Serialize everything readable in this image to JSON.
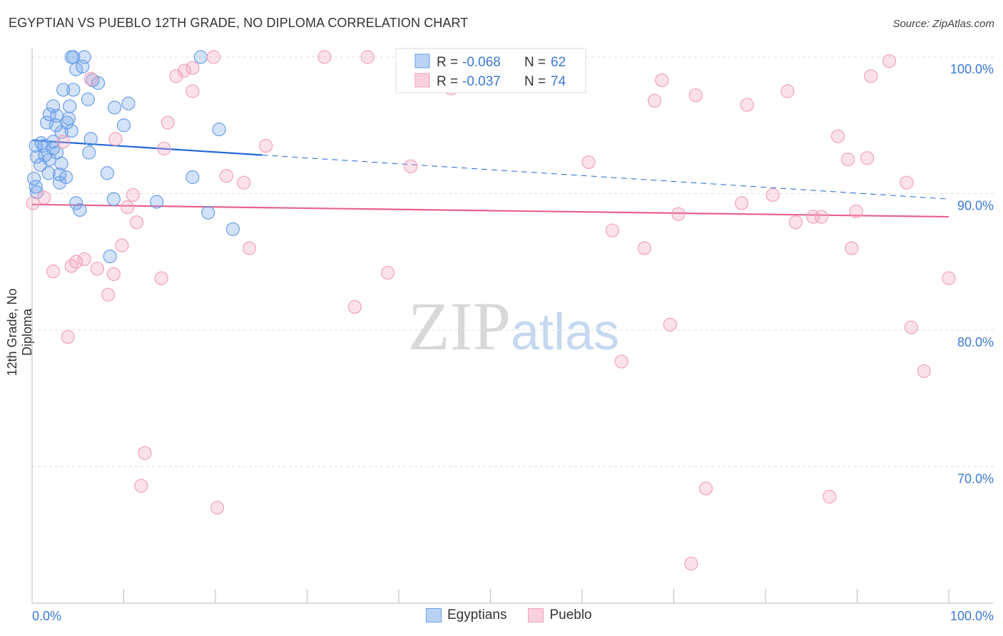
{
  "header": {
    "title": "EGYPTIAN VS PUEBLO 12TH GRADE, NO DIPLOMA CORRELATION CHART",
    "source": "Source: ZipAtlas.com"
  },
  "watermark": "ZIPatlas",
  "chart_data": {
    "type": "scatter",
    "title": "EGYPTIAN VS PUEBLO 12TH GRADE, NO DIPLOMA CORRELATION CHART",
    "xlabel": "",
    "ylabel": "12th Grade, No Diploma",
    "xlim": [
      0,
      100
    ],
    "ylim": [
      60,
      100.6
    ],
    "x_tick_labels": [
      "0.0%",
      "100.0%"
    ],
    "y_ticks": [
      100,
      90,
      80,
      70
    ],
    "y_tick_labels": [
      "100.0%",
      "90.0%",
      "80.0%",
      "70.0%"
    ],
    "grid": true,
    "legend_placement": "top-center",
    "legend": [
      {
        "name": "Egyptians",
        "r_label": "R =",
        "r": "-0.068",
        "n_label": "N =",
        "n": "62",
        "color": "#6a9ee8",
        "line": "#2166d6"
      },
      {
        "name": "Pueblo",
        "r_label": "R =",
        "r": "-0.037",
        "n_label": "N =",
        "n": "74",
        "color": "#f2a0bb",
        "line": "#e8618f"
      }
    ],
    "series": [
      {
        "name": "Egyptians",
        "trend": {
          "start": [
            0,
            93.9
          ],
          "end": [
            100,
            89.6
          ],
          "solid_until": 25.1
        },
        "points": [
          [
            4.3,
            100
          ],
          [
            4.5,
            100
          ],
          [
            5.7,
            100
          ],
          [
            18.4,
            100
          ],
          [
            4.8,
            99.1
          ],
          [
            5.5,
            99.3
          ],
          [
            7.2,
            98.1
          ],
          [
            6.6,
            98.3
          ],
          [
            3.4,
            97.6
          ],
          [
            4.5,
            97.6
          ],
          [
            6.1,
            96.9
          ],
          [
            2.3,
            96.4
          ],
          [
            4.1,
            96.4
          ],
          [
            9.0,
            96.3
          ],
          [
            10.5,
            96.6
          ],
          [
            1.9,
            95.8
          ],
          [
            2.7,
            95.7
          ],
          [
            4.0,
            95.5
          ],
          [
            1.6,
            95.2
          ],
          [
            3.8,
            95.2
          ],
          [
            2.6,
            95.0
          ],
          [
            10.0,
            95.0
          ],
          [
            3.2,
            94.5
          ],
          [
            4.3,
            94.6
          ],
          [
            6.4,
            94.0
          ],
          [
            20.4,
            94.7
          ],
          [
            1.0,
            93.7
          ],
          [
            2.3,
            93.8
          ],
          [
            0.4,
            93.5
          ],
          [
            1.3,
            93.5
          ],
          [
            2.3,
            93.3
          ],
          [
            6.2,
            93.0
          ],
          [
            0.5,
            92.7
          ],
          [
            1.4,
            92.8
          ],
          [
            2.7,
            93.0
          ],
          [
            1.9,
            92.5
          ],
          [
            3.2,
            92.2
          ],
          [
            0.9,
            92.1
          ],
          [
            1.8,
            91.5
          ],
          [
            3.0,
            91.4
          ],
          [
            8.2,
            91.5
          ],
          [
            3.7,
            91.2
          ],
          [
            17.5,
            91.2
          ],
          [
            3.0,
            90.8
          ],
          [
            0.2,
            91.1
          ],
          [
            0.4,
            90.5
          ],
          [
            0.5,
            90.1
          ],
          [
            8.9,
            89.6
          ],
          [
            13.6,
            89.4
          ],
          [
            4.8,
            89.3
          ],
          [
            5.2,
            88.8
          ],
          [
            19.2,
            88.6
          ],
          [
            21.9,
            87.4
          ],
          [
            8.5,
            85.4
          ]
        ]
      },
      {
        "name": "Pueblo",
        "trend": {
          "start": [
            0,
            89.2
          ],
          "end": [
            100,
            88.3
          ],
          "solid_until": 100
        },
        "points": [
          [
            0.1,
            89.3
          ],
          [
            1.3,
            89.7
          ],
          [
            2.3,
            84.3
          ],
          [
            4.3,
            84.7
          ],
          [
            4.8,
            85.0
          ],
          [
            5.7,
            85.2
          ],
          [
            3.9,
            79.5
          ],
          [
            7.1,
            84.5
          ],
          [
            8.3,
            82.6
          ],
          [
            8.9,
            84.1
          ],
          [
            9.8,
            86.2
          ],
          [
            10.4,
            89.0
          ],
          [
            11.0,
            89.9
          ],
          [
            11.4,
            87.9
          ],
          [
            9.1,
            94.0
          ],
          [
            3.4,
            93.8
          ],
          [
            6.4,
            98.4
          ],
          [
            12.3,
            71.0
          ],
          [
            11.9,
            68.6
          ],
          [
            14.1,
            83.8
          ],
          [
            14.4,
            93.3
          ],
          [
            14.8,
            95.2
          ],
          [
            15.7,
            98.6
          ],
          [
            16.6,
            99.0
          ],
          [
            17.5,
            99.2
          ],
          [
            17.5,
            97.5
          ],
          [
            19.8,
            100
          ],
          [
            20.2,
            67.0
          ],
          [
            21.2,
            91.3
          ],
          [
            23.1,
            90.8
          ],
          [
            23.7,
            86.0
          ],
          [
            25.5,
            93.5
          ],
          [
            31.9,
            100
          ],
          [
            35.2,
            81.7
          ],
          [
            36.6,
            100
          ],
          [
            38.8,
            84.2
          ],
          [
            41.3,
            92.0
          ],
          [
            45.7,
            97.7
          ],
          [
            46.9,
            100
          ],
          [
            60.7,
            92.3
          ],
          [
            63.3,
            87.3
          ],
          [
            64.3,
            77.7
          ],
          [
            66.8,
            86.0
          ],
          [
            67.9,
            96.8
          ],
          [
            68.7,
            98.3
          ],
          [
            69.6,
            80.4
          ],
          [
            70.5,
            88.5
          ],
          [
            71.9,
            62.9
          ],
          [
            72.4,
            97.2
          ],
          [
            73.5,
            68.4
          ],
          [
            77.4,
            89.3
          ],
          [
            78.0,
            96.5
          ],
          [
            80.8,
            89.9
          ],
          [
            82.4,
            97.5
          ],
          [
            83.3,
            87.9
          ],
          [
            85.2,
            88.3
          ],
          [
            86.1,
            88.3
          ],
          [
            87.0,
            67.8
          ],
          [
            87.9,
            94.2
          ],
          [
            89.0,
            92.5
          ],
          [
            89.4,
            86.0
          ],
          [
            89.9,
            88.7
          ],
          [
            91.1,
            92.6
          ],
          [
            91.5,
            98.6
          ],
          [
            93.5,
            99.7
          ],
          [
            95.4,
            90.8
          ],
          [
            95.9,
            80.2
          ],
          [
            97.3,
            77.0
          ],
          [
            100,
            83.8
          ]
        ]
      }
    ]
  }
}
